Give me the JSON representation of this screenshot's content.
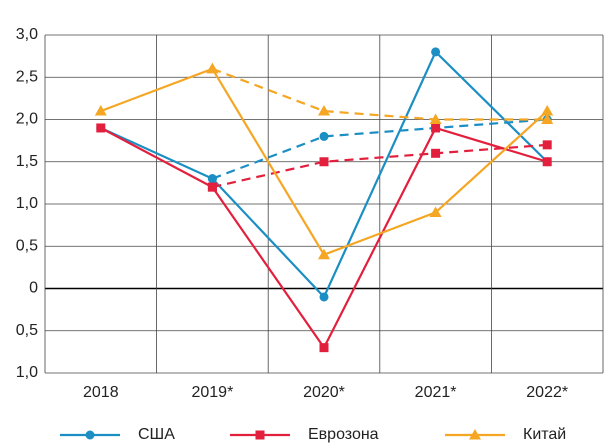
{
  "chart_data": {
    "type": "line",
    "categories": [
      "2018",
      "2019*",
      "2020*",
      "2021*",
      "2022*"
    ],
    "series": [
      {
        "name": "США",
        "color": "#1b8ec4",
        "marker": "circle",
        "values": [
          1.9,
          1.3,
          -0.1,
          2.8,
          1.5
        ],
        "forecast_values": [
          null,
          1.3,
          1.8,
          1.9,
          2.0
        ]
      },
      {
        "name": "Еврозона",
        "color": "#e2203d",
        "marker": "square",
        "values": [
          1.9,
          1.2,
          -0.7,
          1.9,
          1.5
        ],
        "forecast_values": [
          null,
          1.2,
          1.5,
          1.6,
          1.7
        ]
      },
      {
        "name": "Китай",
        "color": "#f5a623",
        "marker": "triangle",
        "values": [
          2.1,
          2.6,
          0.4,
          0.9,
          2.1
        ],
        "forecast_values": [
          null,
          2.6,
          2.1,
          2.0,
          2.0
        ]
      }
    ],
    "ylim": [
      -1.0,
      3.0
    ],
    "yticks": [
      {
        "value": 3.0,
        "label": "3,0"
      },
      {
        "value": 2.5,
        "label": "2,5"
      },
      {
        "value": 2.0,
        "label": "2,0"
      },
      {
        "value": 1.5,
        "label": "1,5"
      },
      {
        "value": 1.0,
        "label": "1,0"
      },
      {
        "value": 0.5,
        "label": "0,5"
      },
      0,
      {
        "value": -0.5,
        "label": "0,5"
      },
      {
        "value": -1.0,
        "label": "1,0"
      }
    ],
    "grid": true,
    "legend": "bottom"
  }
}
